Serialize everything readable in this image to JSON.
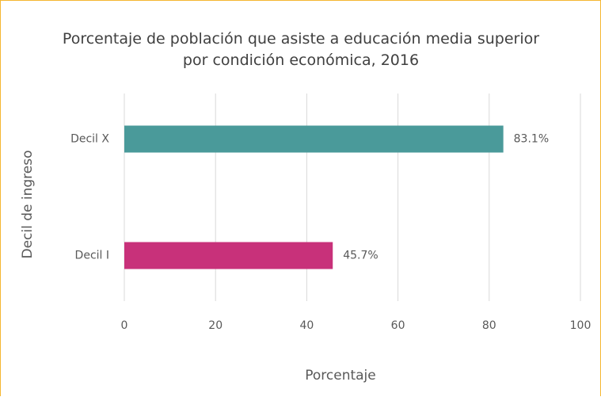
{
  "chart_data": {
    "type": "hbar",
    "title": "Porcentaje de población que asiste a educación media superior por condición económica, 2016",
    "categories": [
      "Decil X",
      "Decil I"
    ],
    "values": [
      83.1,
      45.7
    ],
    "value_labels": [
      "83.1%",
      "45.7%"
    ],
    "colors": [
      "#4a9a9a",
      "#c8317a"
    ],
    "xlabel": "Porcentaje",
    "ylabel": "Decil de ingreso",
    "xlim": [
      0,
      100
    ],
    "xticks": [
      0,
      20,
      40,
      60,
      80,
      100
    ],
    "grid": true
  }
}
